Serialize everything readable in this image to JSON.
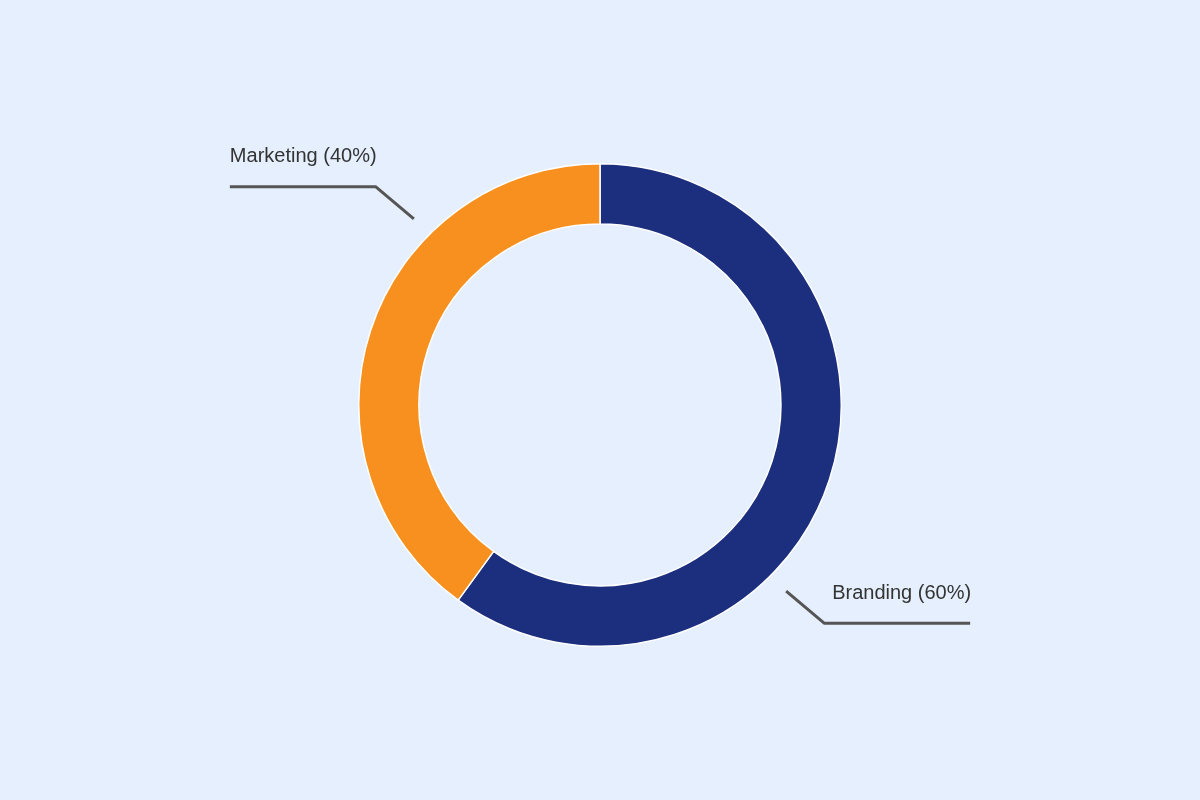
{
  "chart_data": {
    "type": "donut",
    "categories": [
      "Branding (60%)",
      "Marketing (40%)"
    ],
    "values": [
      60,
      40
    ],
    "colors": [
      "#1c2f7e",
      "#f7901e"
    ],
    "legend": false
  }
}
